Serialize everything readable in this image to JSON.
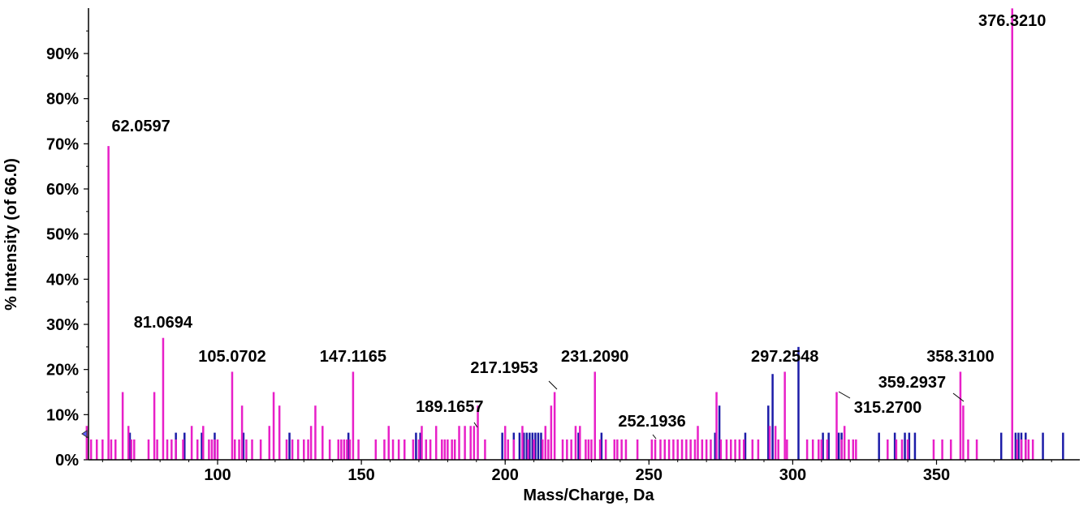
{
  "chart_data": {
    "type": "bar",
    "xlabel": "Mass/Charge, Da",
    "ylabel": "% Intensity (of 66.0)",
    "xlim": [
      53,
      398
    ],
    "ylim": [
      0,
      100
    ],
    "x_ticks": [
      100,
      150,
      200,
      250,
      300,
      350
    ],
    "y_ticks": [
      0,
      10,
      20,
      30,
      40,
      50,
      60,
      70,
      80,
      90
    ],
    "y_tick_labels": [
      "0%",
      "10%",
      "20%",
      "30%",
      "40%",
      "50%",
      "60%",
      "70%",
      "80%",
      "90%"
    ],
    "grid": false,
    "legend": "none",
    "colors": {
      "series_magenta": "#e820c8",
      "series_blue": "#1c1ca8",
      "axis": "#000000"
    },
    "series": [
      {
        "color": "#e820c8",
        "peaks": [
          [
            54.5,
            7.5
          ],
          [
            56,
            4.5
          ],
          [
            58,
            4.5
          ],
          [
            60,
            4.5
          ],
          [
            62.06,
            69.5
          ],
          [
            63,
            4.5
          ],
          [
            64.5,
            4.5
          ],
          [
            67,
            15
          ],
          [
            69,
            7.5
          ],
          [
            70,
            4.5
          ],
          [
            71,
            4.5
          ],
          [
            76,
            4.5
          ],
          [
            78,
            15
          ],
          [
            79,
            4.5
          ],
          [
            81.07,
            27
          ],
          [
            82.5,
            4.5
          ],
          [
            84,
            4.5
          ],
          [
            85.5,
            4.5
          ],
          [
            88,
            4.5
          ],
          [
            91,
            7.5
          ],
          [
            93,
            4.5
          ],
          [
            95,
            7.5
          ],
          [
            97,
            4.5
          ],
          [
            98,
            4.5
          ],
          [
            99,
            4.5
          ],
          [
            100,
            4.5
          ],
          [
            105.07,
            19.5
          ],
          [
            106,
            4.5
          ],
          [
            107.5,
            4.5
          ],
          [
            108.5,
            12
          ],
          [
            110,
            4.5
          ],
          [
            112,
            4.5
          ],
          [
            115,
            4.5
          ],
          [
            118,
            7.5
          ],
          [
            119.5,
            15
          ],
          [
            121.5,
            12
          ],
          [
            124,
            4.5
          ],
          [
            126,
            4.5
          ],
          [
            128,
            4.5
          ],
          [
            130,
            4.5
          ],
          [
            131.5,
            4.5
          ],
          [
            132.5,
            7.5
          ],
          [
            134,
            12
          ],
          [
            136.5,
            7.5
          ],
          [
            139,
            4.5
          ],
          [
            142,
            4.5
          ],
          [
            143,
            4.5
          ],
          [
            144,
            4.5
          ],
          [
            145,
            4.5
          ],
          [
            146,
            4.5
          ],
          [
            147.12,
            19.5
          ],
          [
            149,
            4.5
          ],
          [
            155,
            4.5
          ],
          [
            158,
            4.5
          ],
          [
            159.5,
            7.5
          ],
          [
            161,
            4.5
          ],
          [
            163,
            4.5
          ],
          [
            165,
            4.5
          ],
          [
            168,
            4.5
          ],
          [
            170,
            4.5
          ],
          [
            171,
            7.5
          ],
          [
            172.5,
            4.5
          ],
          [
            174,
            4.5
          ],
          [
            176,
            7.5
          ],
          [
            178,
            4.5
          ],
          [
            179,
            4.5
          ],
          [
            180,
            4.5
          ],
          [
            181.5,
            4.5
          ],
          [
            182.5,
            4.5
          ],
          [
            184,
            7.5
          ],
          [
            186,
            7.5
          ],
          [
            188,
            7.5
          ],
          [
            189.17,
            7.5
          ],
          [
            190.5,
            12
          ],
          [
            193,
            4.5
          ],
          [
            200,
            7.5
          ],
          [
            201,
            4.5
          ],
          [
            203,
            4.5
          ],
          [
            206,
            7.5
          ],
          [
            208,
            4.5
          ],
          [
            210,
            4.5
          ],
          [
            213,
            4.5
          ],
          [
            214,
            7.5
          ],
          [
            215,
            4.5
          ],
          [
            216,
            12
          ],
          [
            217.2,
            15
          ],
          [
            220,
            4.5
          ],
          [
            221.5,
            4.5
          ],
          [
            223,
            4.5
          ],
          [
            224.5,
            7.5
          ],
          [
            226,
            7.5
          ],
          [
            228,
            4.5
          ],
          [
            229,
            4.5
          ],
          [
            230,
            4.5
          ],
          [
            231.21,
            19.5
          ],
          [
            233,
            4.5
          ],
          [
            235,
            4.5
          ],
          [
            238,
            4.5
          ],
          [
            239,
            4.5
          ],
          [
            240.5,
            4.5
          ],
          [
            242,
            4.5
          ],
          [
            246,
            4.5
          ],
          [
            251,
            4.5
          ],
          [
            252.19,
            4.5
          ],
          [
            254,
            4.5
          ],
          [
            255.5,
            4.5
          ],
          [
            257,
            4.5
          ],
          [
            258.5,
            4.5
          ],
          [
            260,
            4.5
          ],
          [
            261.5,
            4.5
          ],
          [
            263,
            4.5
          ],
          [
            264.5,
            4.5
          ],
          [
            266,
            4.5
          ],
          [
            267,
            7.5
          ],
          [
            268.5,
            4.5
          ],
          [
            270,
            4.5
          ],
          [
            271.5,
            4.5
          ],
          [
            273.5,
            15
          ],
          [
            275,
            4.5
          ],
          [
            277,
            4.5
          ],
          [
            278.5,
            4.5
          ],
          [
            280,
            4.5
          ],
          [
            281.5,
            4.5
          ],
          [
            283,
            4.5
          ],
          [
            286,
            4.5
          ],
          [
            288,
            4.5
          ],
          [
            292,
            7.5
          ],
          [
            294,
            7.5
          ],
          [
            295,
            4.5
          ],
          [
            297.25,
            19.5
          ],
          [
            298,
            4.5
          ],
          [
            305,
            4.5
          ],
          [
            307,
            4.5
          ],
          [
            309,
            4.5
          ],
          [
            310,
            4.5
          ],
          [
            312,
            4.5
          ],
          [
            315.27,
            15
          ],
          [
            317,
            4.5
          ],
          [
            318,
            7.5
          ],
          [
            319.5,
            4.5
          ],
          [
            321,
            4.5
          ],
          [
            322,
            4.5
          ],
          [
            333,
            4.5
          ],
          [
            336,
            4.5
          ],
          [
            338,
            4.5
          ],
          [
            340,
            4.5
          ],
          [
            349,
            4.5
          ],
          [
            352,
            4.5
          ],
          [
            355,
            4.5
          ],
          [
            358.31,
            19.5
          ],
          [
            359.29,
            12
          ],
          [
            361,
            4.5
          ],
          [
            364,
            4.5
          ],
          [
            376.32,
            100
          ],
          [
            378,
            4.5
          ],
          [
            379.5,
            4.5
          ],
          [
            381,
            4.5
          ],
          [
            382,
            4.5
          ],
          [
            383.5,
            4.5
          ]
        ]
      },
      {
        "color": "#1c1ca8",
        "peaks": [
          [
            69.5,
            6
          ],
          [
            85.5,
            6
          ],
          [
            88.5,
            6
          ],
          [
            94.5,
            6
          ],
          [
            99,
            6
          ],
          [
            109,
            6
          ],
          [
            125,
            6
          ],
          [
            145.5,
            6
          ],
          [
            169,
            6
          ],
          [
            170.5,
            6
          ],
          [
            199,
            6
          ],
          [
            203,
            6
          ],
          [
            205,
            6
          ],
          [
            206.5,
            6
          ],
          [
            207.5,
            6
          ],
          [
            208.5,
            6
          ],
          [
            209.5,
            6
          ],
          [
            210.5,
            6
          ],
          [
            211.5,
            6
          ],
          [
            212.5,
            6
          ],
          [
            225.5,
            6
          ],
          [
            233.5,
            6
          ],
          [
            273,
            6
          ],
          [
            274.5,
            12
          ],
          [
            283.5,
            6
          ],
          [
            291.5,
            12
          ],
          [
            293,
            19
          ],
          [
            302,
            25
          ],
          [
            310.5,
            6
          ],
          [
            312.5,
            6
          ],
          [
            316,
            6
          ],
          [
            317,
            6
          ],
          [
            330,
            6
          ],
          [
            335.5,
            6
          ],
          [
            339,
            6
          ],
          [
            340.5,
            6
          ],
          [
            342.5,
            6
          ],
          [
            372.5,
            6
          ],
          [
            377.5,
            6
          ],
          [
            378.5,
            6
          ],
          [
            379.5,
            6
          ],
          [
            381,
            6
          ],
          [
            387,
            6
          ],
          [
            394,
            6
          ]
        ]
      }
    ],
    "annotations": [
      {
        "text": "62.0597",
        "x": 62.06
      },
      {
        "text": "81.0694",
        "x": 81.07
      },
      {
        "text": "105.0702",
        "x": 105.07
      },
      {
        "text": "147.1165",
        "x": 147.12
      },
      {
        "text": "189.1657",
        "x": 189.17
      },
      {
        "text": "217.1953",
        "x": 217.2
      },
      {
        "text": "231.2090",
        "x": 231.21
      },
      {
        "text": "252.1936",
        "x": 252.19
      },
      {
        "text": "297.2548",
        "x": 297.25
      },
      {
        "text": "315.2700",
        "x": 315.27
      },
      {
        "text": "358.3100",
        "x": 358.31
      },
      {
        "text": "359.2937",
        "x": 359.29
      },
      {
        "text": "376.3210",
        "x": 376.32
      }
    ]
  }
}
